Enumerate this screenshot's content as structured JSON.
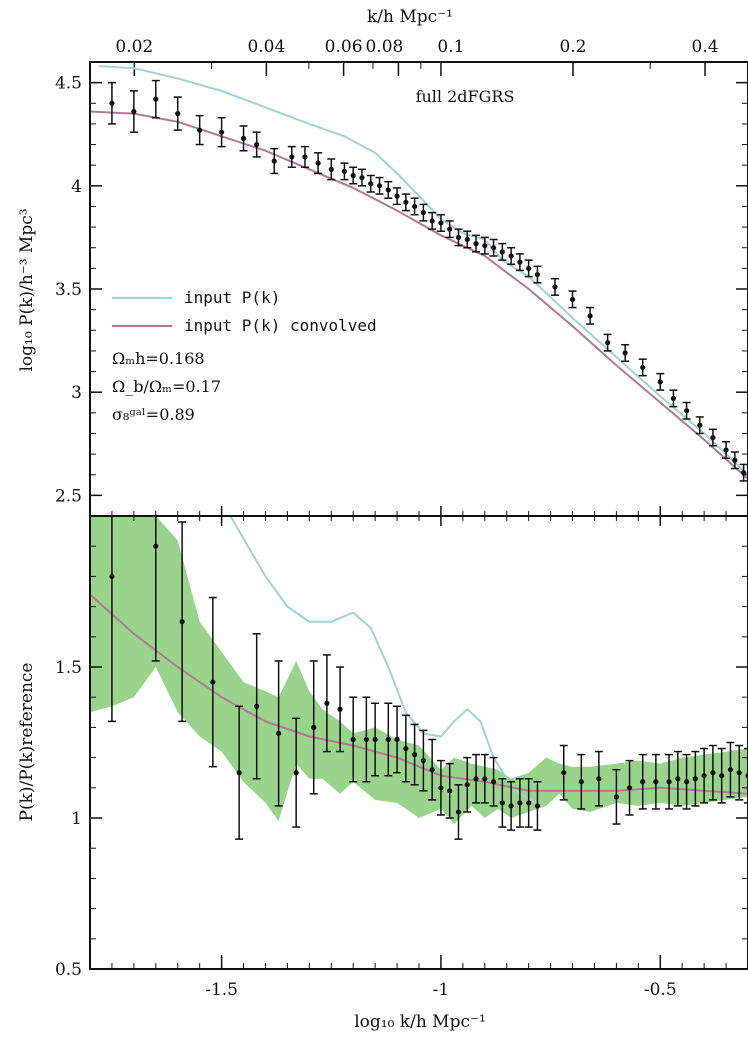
{
  "chart_data": [
    {
      "type": "line",
      "panel": "top",
      "annotation": "full 2dFGRS",
      "top_axis_label": "k/h Mpc⁻¹",
      "top_axis_ticks": [
        "0.02",
        "0.04",
        "0.06",
        "0.08",
        "0.1",
        "0.2",
        "0.4"
      ],
      "top_axis_tick_values": [
        0.02,
        0.04,
        0.06,
        0.08,
        0.1,
        0.2,
        0.4
      ],
      "xlim": [
        -1.8,
        -0.3
      ],
      "ylabel": "log₁₀ P(k)/h⁻³ Mpc³",
      "ylim": [
        2.4,
        4.6
      ],
      "yticks": [
        "2.5",
        "3",
        "3.5",
        "4",
        "4.5"
      ],
      "ytick_values": [
        2.5,
        3.0,
        3.5,
        4.0,
        4.5
      ],
      "legend": [
        {
          "name": "input P(k)",
          "color": "#9fd4cf"
        },
        {
          "name": "input P(k) convolved",
          "color": "#b07a92"
        }
      ],
      "parameters": [
        "Ωₘh=0.168",
        "Ω_b/Ωₘ=0.17",
        "σ₈ᵍᵃˡ=0.89"
      ],
      "curves": [
        {
          "name": "input P(k)",
          "color": "#9fd4cf",
          "x": [
            -1.78,
            -1.7,
            -1.6,
            -1.5,
            -1.4,
            -1.3,
            -1.22,
            -1.15,
            -1.1,
            -1.05,
            -1.0,
            -0.95,
            -0.9,
            -0.86,
            -0.8,
            -0.7,
            -0.6,
            -0.5,
            -0.4,
            -0.3
          ],
          "y": [
            4.58,
            4.57,
            4.52,
            4.46,
            4.38,
            4.3,
            4.24,
            4.16,
            4.06,
            3.95,
            3.84,
            3.77,
            3.74,
            3.64,
            3.56,
            3.36,
            3.17,
            2.98,
            2.8,
            2.6
          ]
        },
        {
          "name": "input P(k) convolved",
          "color": "#b07a92",
          "x": [
            -1.8,
            -1.7,
            -1.6,
            -1.5,
            -1.4,
            -1.3,
            -1.2,
            -1.1,
            -1.0,
            -0.9,
            -0.8,
            -0.7,
            -0.6,
            -0.5,
            -0.4,
            -0.3
          ],
          "y": [
            4.36,
            4.35,
            4.31,
            4.24,
            4.17,
            4.08,
            3.99,
            3.88,
            3.76,
            3.66,
            3.5,
            3.32,
            3.13,
            2.95,
            2.77,
            2.58
          ]
        }
      ],
      "points": {
        "x": [
          -1.75,
          -1.7,
          -1.65,
          -1.6,
          -1.55,
          -1.5,
          -1.45,
          -1.42,
          -1.38,
          -1.34,
          -1.31,
          -1.28,
          -1.25,
          -1.22,
          -1.2,
          -1.18,
          -1.16,
          -1.14,
          -1.12,
          -1.1,
          -1.08,
          -1.06,
          -1.04,
          -1.02,
          -1.0,
          -0.98,
          -0.96,
          -0.94,
          -0.92,
          -0.9,
          -0.88,
          -0.86,
          -0.84,
          -0.82,
          -0.8,
          -0.78,
          -0.74,
          -0.7,
          -0.66,
          -0.62,
          -0.58,
          -0.54,
          -0.5,
          -0.47,
          -0.44,
          -0.41,
          -0.38,
          -0.35,
          -0.33,
          -0.31
        ],
        "y": [
          4.4,
          4.36,
          4.42,
          4.35,
          4.27,
          4.26,
          4.23,
          4.2,
          4.12,
          4.14,
          4.14,
          4.11,
          4.08,
          4.07,
          4.05,
          4.04,
          4.01,
          4.0,
          3.98,
          3.95,
          3.92,
          3.9,
          3.87,
          3.83,
          3.82,
          3.79,
          3.75,
          3.74,
          3.72,
          3.71,
          3.7,
          3.68,
          3.66,
          3.63,
          3.6,
          3.57,
          3.51,
          3.45,
          3.37,
          3.24,
          3.19,
          3.12,
          3.05,
          2.97,
          2.91,
          2.84,
          2.78,
          2.72,
          2.67,
          2.61
        ],
        "yerr": [
          0.1,
          0.1,
          0.09,
          0.08,
          0.07,
          0.07,
          0.06,
          0.06,
          0.06,
          0.05,
          0.05,
          0.05,
          0.05,
          0.04,
          0.04,
          0.04,
          0.04,
          0.04,
          0.04,
          0.04,
          0.04,
          0.04,
          0.04,
          0.04,
          0.04,
          0.04,
          0.04,
          0.04,
          0.04,
          0.04,
          0.04,
          0.04,
          0.04,
          0.04,
          0.04,
          0.04,
          0.04,
          0.04,
          0.04,
          0.04,
          0.04,
          0.04,
          0.04,
          0.04,
          0.04,
          0.04,
          0.04,
          0.04,
          0.04,
          0.04
        ]
      }
    },
    {
      "type": "line",
      "panel": "bottom",
      "xlabel": "log₁₀ k/h Mpc⁻¹",
      "xlim": [
        -1.8,
        -0.3
      ],
      "xticks": [
        "-1.5",
        "-1",
        "-0.5"
      ],
      "xtick_values": [
        -1.5,
        -1.0,
        -0.5
      ],
      "ylabel": "P(k)/P(k)reference",
      "ylim": [
        0.5,
        2.0
      ],
      "yticks": [
        "0.5",
        "1",
        "1.5"
      ],
      "ytick_values": [
        0.5,
        1.0,
        1.5
      ],
      "band_color": "#8fcf7f",
      "band": {
        "x": [
          -1.8,
          -1.75,
          -1.7,
          -1.65,
          -1.6,
          -1.55,
          -1.5,
          -1.45,
          -1.4,
          -1.37,
          -1.33,
          -1.3,
          -1.27,
          -1.23,
          -1.2,
          -1.15,
          -1.1,
          -1.05,
          -1.0,
          -0.97,
          -0.93,
          -0.9,
          -0.87,
          -0.84,
          -0.8,
          -0.76,
          -0.73,
          -0.7,
          -0.66,
          -0.6,
          -0.55,
          -0.5,
          -0.45,
          -0.4,
          -0.35,
          -0.3
        ],
        "lower": [
          1.35,
          1.37,
          1.4,
          1.5,
          1.35,
          1.27,
          1.22,
          1.12,
          1.05,
          0.99,
          1.18,
          1.13,
          1.13,
          1.08,
          1.12,
          1.06,
          1.05,
          1.0,
          1.03,
          0.98,
          1.04,
          1.0,
          1.03,
          1.0,
          1.02,
          1.04,
          1.08,
          1.03,
          1.02,
          1.05,
          1.04,
          1.05,
          1.04,
          1.05,
          1.06,
          1.07
        ],
        "upper": [
          2.0,
          2.0,
          2.0,
          2.0,
          1.92,
          1.65,
          1.55,
          1.45,
          1.42,
          1.4,
          1.52,
          1.42,
          1.36,
          1.32,
          1.28,
          1.3,
          1.26,
          1.24,
          1.16,
          1.2,
          1.18,
          1.17,
          1.16,
          1.13,
          1.15,
          1.2,
          1.18,
          1.17,
          1.17,
          1.18,
          1.19,
          1.18,
          1.2,
          1.21,
          1.22,
          1.23
        ]
      },
      "curves": [
        {
          "name": "input P(k)",
          "color": "#9fd4cf",
          "x": [
            -1.48,
            -1.44,
            -1.4,
            -1.35,
            -1.3,
            -1.25,
            -1.2,
            -1.16,
            -1.12,
            -1.08,
            -1.04,
            -1.0,
            -0.97,
            -0.94,
            -0.91,
            -0.88,
            -0.85,
            -0.82,
            -0.78
          ],
          "y": [
            2.0,
            1.9,
            1.8,
            1.7,
            1.65,
            1.65,
            1.68,
            1.63,
            1.5,
            1.35,
            1.28,
            1.27,
            1.32,
            1.36,
            1.32,
            1.2,
            1.13,
            1.08,
            1.05
          ]
        },
        {
          "name": "input P(k) convolved",
          "color": "#b07a92",
          "x": [
            -1.8,
            -1.7,
            -1.6,
            -1.5,
            -1.4,
            -1.3,
            -1.2,
            -1.1,
            -1.0,
            -0.9,
            -0.8,
            -0.7,
            -0.6,
            -0.5,
            -0.4,
            -0.3
          ],
          "y": [
            1.74,
            1.61,
            1.5,
            1.4,
            1.32,
            1.27,
            1.24,
            1.2,
            1.14,
            1.12,
            1.09,
            1.09,
            1.09,
            1.1,
            1.09,
            1.08
          ]
        }
      ],
      "points": {
        "x": [
          -1.75,
          -1.65,
          -1.59,
          -1.52,
          -1.46,
          -1.42,
          -1.37,
          -1.33,
          -1.29,
          -1.26,
          -1.23,
          -1.2,
          -1.17,
          -1.15,
          -1.12,
          -1.1,
          -1.08,
          -1.06,
          -1.04,
          -1.02,
          -1.0,
          -0.98,
          -0.96,
          -0.94,
          -0.92,
          -0.9,
          -0.88,
          -0.86,
          -0.84,
          -0.82,
          -0.8,
          -0.78,
          -0.72,
          -0.68,
          -0.64,
          -0.6,
          -0.57,
          -0.54,
          -0.51,
          -0.48,
          -0.46,
          -0.44,
          -0.42,
          -0.4,
          -0.38,
          -0.36,
          -0.34,
          -0.32,
          -0.3
        ],
        "y": [
          1.8,
          1.9,
          1.65,
          1.45,
          1.15,
          1.37,
          1.28,
          1.15,
          1.3,
          1.38,
          1.36,
          1.26,
          1.26,
          1.26,
          1.26,
          1.26,
          1.23,
          1.21,
          1.19,
          1.16,
          1.1,
          1.09,
          1.02,
          1.11,
          1.13,
          1.13,
          1.12,
          1.05,
          1.04,
          1.05,
          1.05,
          1.04,
          1.15,
          1.12,
          1.13,
          1.07,
          1.1,
          1.12,
          1.12,
          1.12,
          1.13,
          1.12,
          1.13,
          1.14,
          1.15,
          1.14,
          1.16,
          1.15,
          1.14
        ],
        "yerr": [
          0.48,
          0.38,
          0.33,
          0.28,
          0.22,
          0.24,
          0.24,
          0.18,
          0.22,
          0.16,
          0.14,
          0.14,
          0.14,
          0.12,
          0.12,
          0.11,
          0.11,
          0.1,
          0.1,
          0.1,
          0.09,
          0.09,
          0.09,
          0.09,
          0.08,
          0.08,
          0.08,
          0.08,
          0.08,
          0.08,
          0.08,
          0.08,
          0.09,
          0.09,
          0.09,
          0.09,
          0.09,
          0.09,
          0.09,
          0.09,
          0.09,
          0.09,
          0.09,
          0.09,
          0.09,
          0.09,
          0.09,
          0.09,
          0.09
        ]
      }
    }
  ]
}
